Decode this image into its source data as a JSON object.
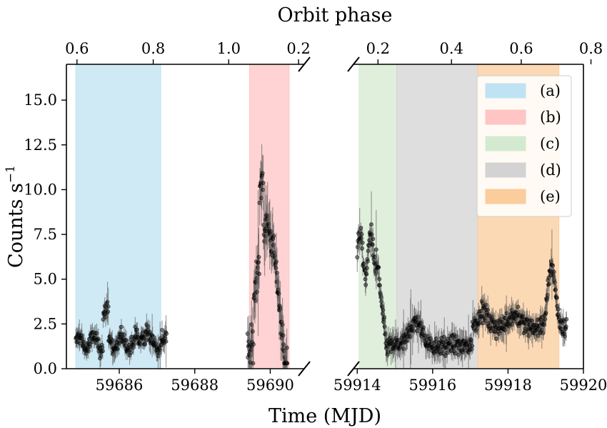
{
  "chart_data": {
    "type": "scatter",
    "title": "Orbit phase",
    "xlabel": "Time (MJD)",
    "ylabel": "Counts s",
    "ylabel_sup": "−1",
    "ylim": [
      0,
      17
    ],
    "yticks": [
      "0.0",
      "2.5",
      "5.0",
      "7.5",
      "10.0",
      "12.5",
      "15.0"
    ],
    "ytick_values": [
      0,
      2.5,
      5,
      7.5,
      10,
      12.5,
      15
    ],
    "panels": [
      {
        "name": "left",
        "xlim": [
          59684.6,
          59690.9
        ],
        "xticks": [
          {
            "value": 59686,
            "label": "59686"
          },
          {
            "value": 59688,
            "label": "59688"
          },
          {
            "value": 59690,
            "label": "59690"
          }
        ],
        "phase_ticks": [
          {
            "mjd": 59684.88,
            "label": "0.6"
          },
          {
            "mjd": 59686.9,
            "label": "0.8"
          },
          {
            "mjd": 59688.9,
            "label": "1.0"
          },
          {
            "mjd": 59690.75,
            "label": "0.2"
          }
        ],
        "bands": [
          {
            "label": "(a)",
            "x0": 59684.85,
            "x1": 59687.1,
            "color": "#bfe3f2"
          },
          {
            "label": "(b)",
            "x0": 59689.45,
            "x1": 59690.5,
            "color": "#ffc4c4"
          }
        ],
        "segments": [
          {
            "x0": 59684.85,
            "x1": 59687.25,
            "n": 230,
            "kind": "flat",
            "base": 1.45,
            "noise": 0.45,
            "err": 0.4
          },
          {
            "x0": 59689.4,
            "x1": 59690.45,
            "n": 110,
            "kind": "flare",
            "base": 1.0,
            "noise": 0.9,
            "err": 1.0
          }
        ]
      },
      {
        "name": "right",
        "xlim": [
          59913.9,
          59920.0
        ],
        "xticks": [
          {
            "value": 59914,
            "label": "59914"
          },
          {
            "value": 59916,
            "label": "59916"
          },
          {
            "value": 59918,
            "label": "59918"
          },
          {
            "value": 59920,
            "label": "59920"
          }
        ],
        "phase_ticks": [
          {
            "mjd": 59914.55,
            "label": "0.2"
          },
          {
            "mjd": 59916.5,
            "label": "0.4"
          },
          {
            "mjd": 59918.35,
            "label": "0.6"
          },
          {
            "mjd": 59920.2,
            "label": "0.8"
          }
        ],
        "bands": [
          {
            "label": "(c)",
            "x0": 59914.05,
            "x1": 59915.05,
            "color": "#d4ead0"
          },
          {
            "label": "(d)",
            "x0": 59915.05,
            "x1": 59917.2,
            "color": "#d3d3d3"
          },
          {
            "label": "(e)",
            "x0": 59917.2,
            "x1": 59919.35,
            "color": "#fbcc9c"
          }
        ],
        "segments": [
          {
            "x0": 59914.0,
            "x1": 59919.55,
            "n": 520,
            "kind": "orbit",
            "base": 1.2,
            "noise": 0.5,
            "err": 0.5
          }
        ]
      }
    ],
    "legend": {
      "position": "top-right",
      "entries": [
        {
          "label": "(a)",
          "color": "#bfe3f2"
        },
        {
          "label": "(b)",
          "color": "#ffc4c4"
        },
        {
          "label": "(c)",
          "color": "#d4ead0"
        },
        {
          "label": "(d)",
          "color": "#d3d3d3"
        },
        {
          "label": "(e)",
          "color": "#fbcc9c"
        }
      ]
    },
    "point_color": "#000000"
  }
}
